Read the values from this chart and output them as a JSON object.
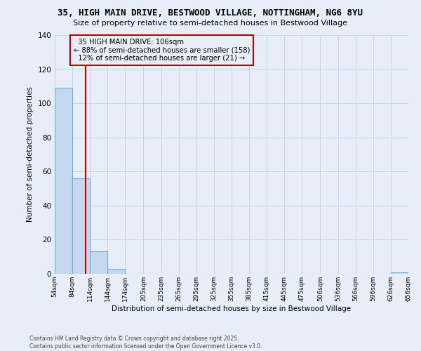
{
  "title_line1": "35, HIGH MAIN DRIVE, BESTWOOD VILLAGE, NOTTINGHAM, NG6 8YU",
  "title_line2": "Size of property relative to semi-detached houses in Bestwood Village",
  "xlabel": "Distribution of semi-detached houses by size in Bestwood Village",
  "ylabel": "Number of semi-detached properties",
  "footer_line1": "Contains HM Land Registry data © Crown copyright and database right 2025.",
  "footer_line2": "Contains public sector information licensed under the Open Government Licence v3.0.",
  "bins": [
    54,
    84,
    114,
    144,
    174,
    205,
    235,
    265,
    295,
    325,
    355,
    385,
    415,
    445,
    475,
    506,
    536,
    566,
    596,
    626,
    656
  ],
  "bar_values": [
    109,
    56,
    13,
    3,
    0,
    0,
    0,
    0,
    0,
    0,
    0,
    0,
    0,
    0,
    0,
    0,
    0,
    0,
    0,
    1
  ],
  "bar_color": "#c5d8f0",
  "bar_edge_color": "#6baed6",
  "grid_color": "#c8d4e8",
  "background_color": "#e8eef8",
  "property_size": 106,
  "property_label": "35 HIGH MAIN DRIVE: 106sqm",
  "pct_smaller": 88,
  "count_smaller": 158,
  "pct_larger": 12,
  "count_larger": 21,
  "vline_color": "#c00000",
  "ylim": [
    0,
    140
  ],
  "yticks": [
    0,
    20,
    40,
    60,
    80,
    100,
    120,
    140
  ]
}
